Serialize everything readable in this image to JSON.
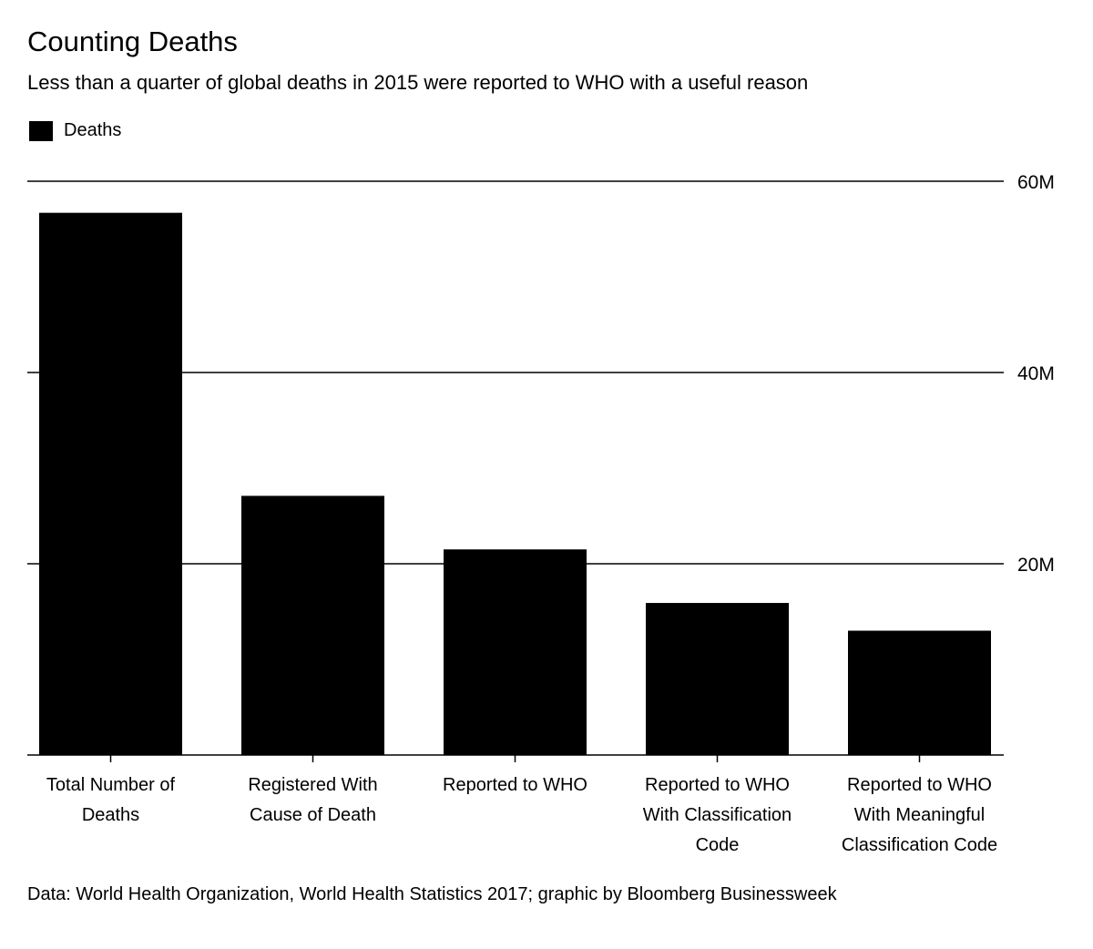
{
  "chart_data": {
    "type": "bar",
    "title": "Counting Deaths",
    "subtitle": "Less than a quarter of global deaths in 2015 were reported to WHO with a useful reason",
    "legend": [
      {
        "name": "Deaths",
        "color": "#000000"
      }
    ],
    "categories": [
      [
        "Total Number of",
        "Deaths"
      ],
      [
        "Registered With",
        "Cause of Death"
      ],
      [
        "Reported to WHO"
      ],
      [
        "Reported to WHO",
        "With Classification",
        "Code"
      ],
      [
        "Reported to WHO",
        "With Meaningful",
        "Classification Code"
      ]
    ],
    "values": [
      56.7,
      27.1,
      21.5,
      15.9,
      13.0
    ],
    "unit": "M",
    "ylim": [
      0,
      60
    ],
    "yticks": [
      20,
      40,
      60
    ],
    "ytick_labels": [
      "20M",
      "40M",
      "60M"
    ],
    "grid": true,
    "legend_position": "top-left",
    "source": "Data: World Health Organization, World Health Statistics 2017; graphic by Bloomberg Businessweek"
  }
}
